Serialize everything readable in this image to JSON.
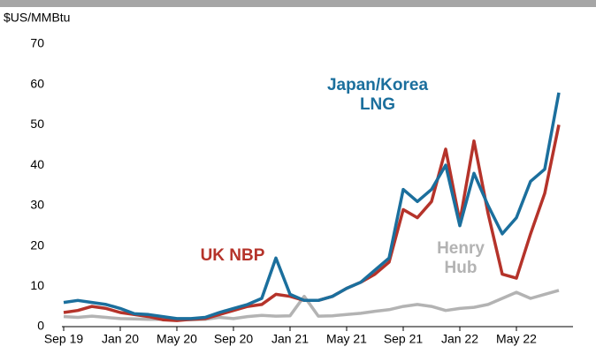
{
  "chart_data": {
    "type": "line",
    "y_label": "$US/MMBtu",
    "x": [
      "2019-09",
      "2019-10",
      "2019-11",
      "2019-12",
      "2020-01",
      "2020-02",
      "2020-03",
      "2020-04",
      "2020-05",
      "2020-06",
      "2020-07",
      "2020-08",
      "2020-09",
      "2020-10",
      "2020-11",
      "2020-12",
      "2021-01",
      "2021-02",
      "2021-03",
      "2021-04",
      "2021-05",
      "2021-06",
      "2021-07",
      "2021-08",
      "2021-09",
      "2021-10",
      "2021-11",
      "2021-12",
      "2022-01",
      "2022-02",
      "2022-03",
      "2022-04",
      "2022-05",
      "2022-06",
      "2022-07",
      "2022-08"
    ],
    "series": [
      {
        "name": "Japan/Korea LNG",
        "color": "#1b6f9d",
        "values": [
          6,
          6.5,
          6,
          5.5,
          4.5,
          3.2,
          3,
          2.5,
          2,
          2,
          2.3,
          3.5,
          4.5,
          5.5,
          7,
          17,
          8,
          6.5,
          6.5,
          7.5,
          9.5,
          11,
          14,
          17,
          34,
          31,
          34,
          40,
          25,
          38,
          30,
          23,
          27,
          36,
          39,
          58
        ]
      },
      {
        "name": "UK NBP",
        "color": "#b5332a",
        "values": [
          3.5,
          4,
          5,
          4.5,
          3.5,
          3,
          2.5,
          1.7,
          1.5,
          1.8,
          2,
          3,
          4,
          5,
          5.5,
          8,
          7.5,
          6.5,
          6.5,
          7.5,
          9.5,
          11,
          13,
          16,
          29,
          27,
          31,
          44,
          26,
          46,
          28,
          13,
          12,
          23,
          33,
          50
        ]
      },
      {
        "name": "Henry Hub",
        "color": "#b3b3b3",
        "values": [
          2.5,
          2.3,
          2.6,
          2.3,
          2,
          1.9,
          1.8,
          1.8,
          1.8,
          1.7,
          1.8,
          2.3,
          2,
          2.5,
          2.8,
          2.6,
          2.7,
          7.5,
          2.6,
          2.7,
          3,
          3.3,
          3.8,
          4.2,
          5,
          5.5,
          5,
          4,
          4.5,
          4.8,
          5.5,
          7,
          8.5,
          7,
          8,
          9
        ]
      }
    ],
    "xlim": [
      "2019-09",
      "2022-09"
    ],
    "xticks": [
      {
        "value": "2019-09",
        "label": "Sep 19"
      },
      {
        "value": "2020-01",
        "label": "Jan 20"
      },
      {
        "value": "2020-05",
        "label": "May 20"
      },
      {
        "value": "2020-09",
        "label": "Sep 20"
      },
      {
        "value": "2021-01",
        "label": "Jan 21"
      },
      {
        "value": "2021-05",
        "label": "May 21"
      },
      {
        "value": "2021-09",
        "label": "Sep 21"
      },
      {
        "value": "2022-01",
        "label": "Jan 22"
      },
      {
        "value": "2022-05",
        "label": "May 22"
      }
    ],
    "ylim": [
      0,
      70
    ],
    "yticks": [
      0,
      10,
      20,
      30,
      40,
      50,
      60,
      70
    ],
    "grid": false
  }
}
